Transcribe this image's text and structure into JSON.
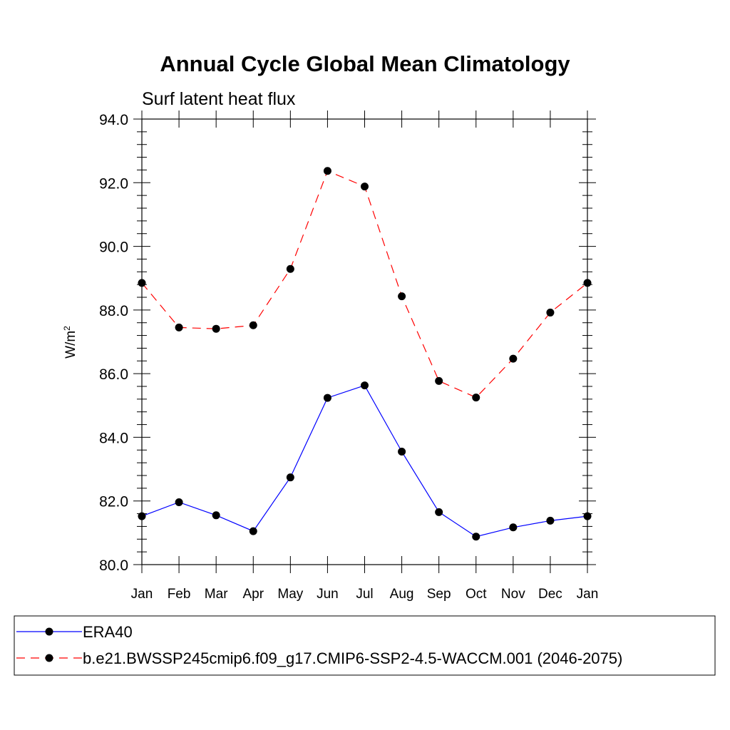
{
  "chart_data": {
    "type": "line",
    "title": "Annual Cycle Global Mean Climatology",
    "subtitle": "Surf latent heat flux",
    "ylabel": "W/m",
    "ylabel_superscript": "2",
    "xlabel": "",
    "ylim": [
      80.0,
      94.0
    ],
    "yticks": [
      "80.0",
      "82.0",
      "84.0",
      "86.0",
      "88.0",
      "90.0",
      "92.0",
      "94.0"
    ],
    "categories": [
      "Jan",
      "Feb",
      "Mar",
      "Apr",
      "May",
      "Jun",
      "Jul",
      "Aug",
      "Sep",
      "Oct",
      "Nov",
      "Dec",
      "Jan"
    ],
    "grid": false,
    "legend_position": "bottom",
    "series": [
      {
        "name": "ERA40",
        "color": "#0000ff",
        "line_style": "solid",
        "marker": "filled-circle",
        "values": [
          81.52,
          81.96,
          81.55,
          81.05,
          82.74,
          85.24,
          85.63,
          83.55,
          81.65,
          80.88,
          81.17,
          81.38,
          81.52
        ]
      },
      {
        "name": "b.e21.BWSSP245cmip6.f09_g17.CMIP6-SSP2-4.5-WACCM.001 (2046-2075)",
        "color": "#ff0000",
        "line_style": "dashed",
        "marker": "filled-circle",
        "values": [
          88.85,
          87.45,
          87.41,
          87.52,
          89.29,
          92.37,
          91.88,
          88.43,
          85.77,
          85.25,
          86.47,
          87.92,
          88.85
        ]
      }
    ]
  }
}
